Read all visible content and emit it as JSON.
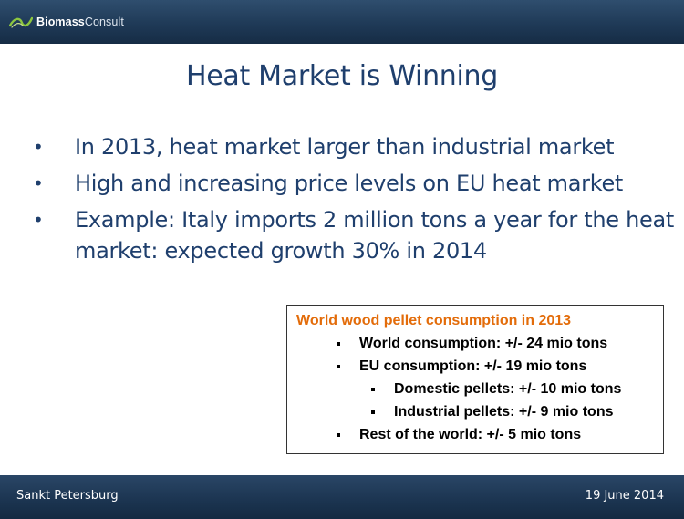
{
  "header": {
    "logo": {
      "icon": "leaf-swoosh-icon",
      "brand_bold": "Biomass",
      "brand_light": "Consult"
    }
  },
  "title": "Heat Market is Winning",
  "bullets": [
    "In 2013, heat market larger than industrial market",
    "High and increasing price levels on EU heat market",
    "Example: Italy imports 2 million tons a year for the heat market: expected growth 30% in 2014"
  ],
  "info_box": {
    "title": "World wood pellet consumption in 2013",
    "items": [
      {
        "level": 1,
        "text": "World consumption: +/- 24 mio tons"
      },
      {
        "level": 1,
        "text": "EU consumption: +/- 19 mio tons"
      },
      {
        "level": 2,
        "text": "Domestic pellets: +/- 10 mio tons"
      },
      {
        "level": 2,
        "text": "Industrial pellets: +/- 9 mio tons"
      },
      {
        "level": 1,
        "text": "Rest of the world: +/- 5 mio tons"
      }
    ]
  },
  "footer": {
    "location": "Sankt Petersburg",
    "date": "19 June 2014"
  },
  "colors": {
    "header_bg": "#1f3a57",
    "title_text": "#1f3f6d",
    "info_title": "#e36c0a"
  }
}
